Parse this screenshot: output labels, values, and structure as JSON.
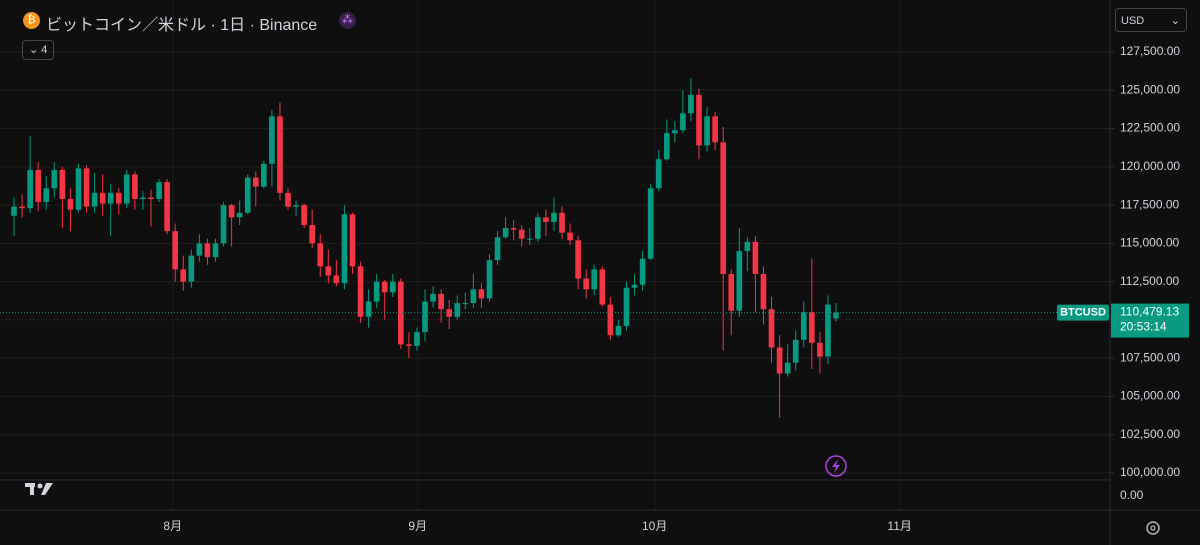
{
  "header": {
    "title": "ビットコイン／米ドル · 1日 · Binance",
    "indicators": "4",
    "currency": "USD"
  },
  "chart_data": {
    "type": "candlestick",
    "open": [
      116800,
      117400,
      117300,
      119800,
      117700,
      118600,
      119800,
      117900,
      117200,
      119900,
      117400,
      118300,
      117600,
      118300,
      117600,
      119500,
      117900,
      118000,
      117900,
      119000,
      115800,
      113300,
      112500,
      114200,
      115000,
      114100,
      115000,
      117500,
      116700,
      117000,
      119300,
      118700,
      120200,
      123300,
      118300,
      117400,
      117500,
      116200,
      115000,
      113500,
      112900,
      112400,
      116900,
      113500,
      110200,
      111200,
      112500,
      111800,
      112500,
      108400,
      108300,
      109200,
      111200,
      111700,
      110700,
      110200,
      111100,
      111100,
      112000,
      111400,
      113900,
      115400,
      116000,
      115900,
      115300,
      115300,
      116700,
      116400,
      117000,
      115700,
      115200,
      112700,
      112000,
      113300,
      111000,
      109000,
      109600,
      112100,
      112300,
      114000,
      118600,
      120500,
      122200,
      122400,
      123500,
      124700,
      121400,
      123300,
      121600,
      113000,
      110600,
      114500,
      115100,
      113000,
      110700,
      108200,
      106500,
      107200,
      108700,
      110500,
      108500,
      107600,
      110100
    ],
    "high": [
      118000,
      118200,
      122000,
      120300,
      119400,
      120300,
      120000,
      118600,
      120200,
      120100,
      119600,
      119500,
      118900,
      118600,
      119800,
      119700,
      118400,
      118500,
      119200,
      119200,
      116300,
      114200,
      114600,
      115600,
      115300,
      115300,
      117700,
      117600,
      117800,
      119500,
      119700,
      120400,
      123700,
      124200,
      118600,
      117800,
      117600,
      117200,
      115600,
      114600,
      113900,
      117500,
      117000,
      113800,
      112000,
      113000,
      112600,
      113000,
      112700,
      109200,
      109500,
      112000,
      112200,
      112000,
      111300,
      111600,
      111800,
      113000,
      112400,
      114300,
      115800,
      116700,
      116500,
      116200,
      116000,
      117000,
      117200,
      118000,
      117400,
      116300,
      115500,
      113300,
      113600,
      113500,
      111500,
      110000,
      112500,
      113000,
      114500,
      118900,
      121100,
      123100,
      123000,
      125000,
      125800,
      125100,
      123900,
      123600,
      122600,
      113300,
      116000,
      115400,
      115500,
      113500,
      111500,
      109000,
      108400,
      109300,
      111200,
      114000,
      109200,
      111600,
      111100
    ],
    "low": [
      115500,
      116700,
      117000,
      117100,
      117200,
      118000,
      116000,
      115800,
      117000,
      117000,
      117000,
      116800,
      115500,
      116900,
      117300,
      117200,
      117200,
      116100,
      117700,
      115600,
      112500,
      111900,
      112100,
      113800,
      113600,
      113800,
      114800,
      114800,
      116200,
      116900,
      117400,
      118600,
      118700,
      117800,
      117200,
      116800,
      116000,
      114700,
      112800,
      112400,
      112200,
      112000,
      113000,
      109800,
      109500,
      110800,
      110000,
      111500,
      108100,
      107500,
      108000,
      108600,
      110800,
      109800,
      109400,
      110000,
      110700,
      110800,
      110800,
      111200,
      113600,
      115300,
      115200,
      114800,
      114900,
      115100,
      115500,
      115800,
      115300,
      114900,
      112000,
      111400,
      111600,
      110900,
      108700,
      108900,
      109300,
      111600,
      111900,
      113900,
      118400,
      120400,
      121600,
      122200,
      123000,
      120500,
      121000,
      121100,
      108000,
      109000,
      110200,
      113200,
      110500,
      109700,
      107200,
      103600,
      106300,
      106700,
      108200,
      106800,
      106500,
      107100,
      109900
    ],
    "close": [
      117400,
      117300,
      119800,
      117700,
      118600,
      119800,
      117900,
      117200,
      119900,
      117400,
      118300,
      117600,
      118300,
      117600,
      119500,
      117900,
      118000,
      117900,
      119000,
      115800,
      113300,
      112500,
      114200,
      115000,
      114100,
      115000,
      117500,
      116700,
      117000,
      119300,
      118700,
      120200,
      123300,
      118300,
      117400,
      117500,
      116200,
      115000,
      113500,
      112900,
      112400,
      116900,
      113500,
      110200,
      111200,
      112500,
      111800,
      112500,
      108400,
      108300,
      109200,
      111200,
      111700,
      110700,
      110200,
      111100,
      111100,
      112000,
      111400,
      113900,
      115400,
      116000,
      115900,
      115300,
      115300,
      116700,
      116400,
      117000,
      115700,
      115200,
      112700,
      112000,
      113300,
      111000,
      109000,
      109600,
      112100,
      112300,
      114000,
      118600,
      120500,
      122200,
      122400,
      123500,
      124700,
      121400,
      123300,
      121600,
      113000,
      110600,
      114500,
      115100,
      113000,
      110700,
      108200,
      106500,
      107200,
      108700,
      110500,
      108500,
      107600,
      111000,
      110479.13
    ],
    "up_color": "#089981",
    "down_color": "#f23645",
    "ylim": [
      99540,
      130900
    ],
    "yticks": [
      {
        "value": 100000,
        "label": "100,000.00"
      },
      {
        "value": 102500,
        "label": "102,500.00"
      },
      {
        "value": 105000,
        "label": "105,000.00"
      },
      {
        "value": 107500,
        "label": "107,500.00"
      },
      {
        "value": 110000,
        "label": "110,000.00"
      },
      {
        "value": 112500,
        "label": "112,500.00"
      },
      {
        "value": 115000,
        "label": "115,000.00"
      },
      {
        "value": 117500,
        "label": "117,500.00"
      },
      {
        "value": 120000,
        "label": "120,000.00"
      },
      {
        "value": 122500,
        "label": "122,500.00"
      },
      {
        "value": 125000,
        "label": "125,000.00"
      },
      {
        "value": 127500,
        "label": "127,500.00"
      }
    ],
    "xlim": [
      -1.74,
      136
    ],
    "xticks": [
      {
        "value": 19.7,
        "label": "8月"
      },
      {
        "value": 50.1,
        "label": "9月"
      },
      {
        "value": 79.5,
        "label": "10月"
      },
      {
        "value": 109.9,
        "label": "11月"
      }
    ],
    "grid": true,
    "last_price": {
      "symbol": "BTCUSD",
      "value": 110479.13,
      "label": "110,479.13",
      "countdown": "20:53:14"
    },
    "lower_pane": {
      "yticks": [
        {
          "value": 0,
          "label": "0.00"
        }
      ]
    }
  }
}
